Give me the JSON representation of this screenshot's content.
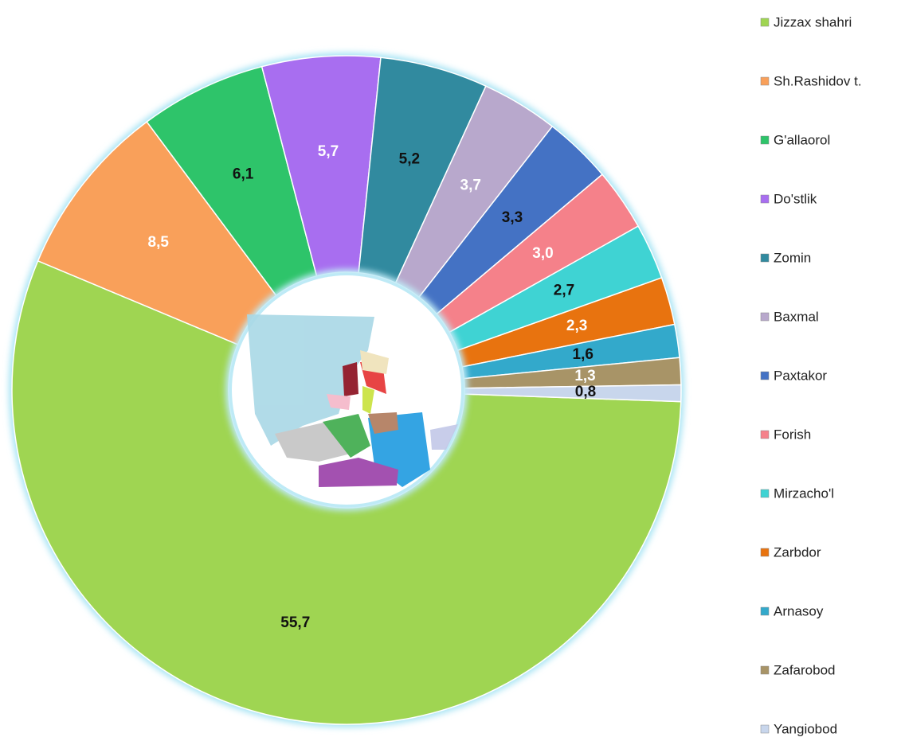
{
  "chart_data": {
    "type": "donut",
    "categories": [
      "Jizzax shahri",
      "Sh.Rashidov t.",
      "G'allaorol",
      "Do'stlik",
      "Zomin",
      "Baxmal",
      "Paxtakor",
      "Forish",
      "Mirzacho'l",
      "Zarbdor",
      "Arnasoy",
      "Zafarobod",
      "Yangiobod"
    ],
    "values": [
      55.7,
      8.5,
      6.1,
      5.7,
      5.2,
      3.7,
      3.3,
      3.0,
      2.7,
      2.3,
      1.6,
      1.3,
      0.8
    ],
    "value_labels": [
      "55,7",
      "8,5",
      "6,1",
      "5,7",
      "5,2",
      "3,7",
      "3,3",
      "3,0",
      "2,7",
      "2,3",
      "1,6",
      "1,3",
      "0,8"
    ],
    "colors": [
      "#9fd552",
      "#f9a05a",
      "#2ec46a",
      "#a86ef0",
      "#318a9f",
      "#b8a8cc",
      "#4472c4",
      "#f5818a",
      "#3fd3d3",
      "#e8730f",
      "#33a9cb",
      "#a89467",
      "#c8d6ec"
    ],
    "label_colors": [
      "#111111",
      "#ffffff",
      "#111111",
      "#ffffff",
      "#111111",
      "#ffffff",
      "#111111",
      "#ffffff",
      "#111111",
      "#ffffff",
      "#111111",
      "#ffffff",
      "#111111"
    ],
    "legend": "right"
  }
}
